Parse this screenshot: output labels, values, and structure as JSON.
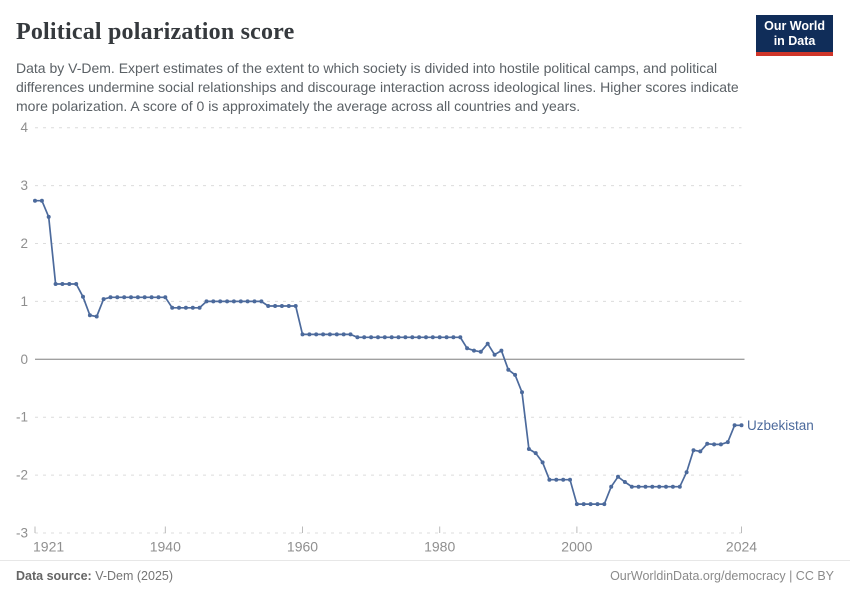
{
  "header": {
    "title": "Political polarization score",
    "subtitle": "Data by V-Dem. Expert estimates of the extent to which society is divided into hostile political camps, and political differences undermine social relationships and discourage interaction across ideological lines. Higher scores indicate more polarization. A score of 0 is approximately the average across all countries and years."
  },
  "logo": {
    "line1": "Our World",
    "line2": "in Data",
    "bg_color": "#102d59",
    "bar_color": "#cf3529"
  },
  "chart_data": {
    "type": "line",
    "title": "Political polarization score",
    "xlabel": "",
    "ylabel": "",
    "x_domain": [
      1921,
      2024
    ],
    "y_domain": [
      -3,
      4
    ],
    "y_ticks": [
      4,
      3,
      2,
      1,
      0,
      -1,
      -2,
      -3
    ],
    "x_ticks": [
      1921,
      1940,
      1960,
      1980,
      2000,
      2024
    ],
    "grid": "dashed horizontal, solid zero line",
    "legend_position": "end-of-line label",
    "series": [
      {
        "name": "Uzbekistan",
        "color": "#4c6a9c",
        "start_year": 1921,
        "end_year": 2024,
        "values": [
          2.74,
          2.74,
          2.46,
          1.3,
          1.3,
          1.3,
          1.3,
          1.08,
          0.76,
          0.74,
          1.04,
          1.07,
          1.07,
          1.07,
          1.07,
          1.07,
          1.07,
          1.07,
          1.07,
          1.07,
          0.89,
          0.89,
          0.89,
          0.89,
          0.89,
          1.0,
          1.0,
          1.0,
          1.0,
          1.0,
          1.0,
          1.0,
          1.0,
          1.0,
          0.92,
          0.92,
          0.92,
          0.92,
          0.92,
          0.43,
          0.43,
          0.43,
          0.43,
          0.43,
          0.43,
          0.43,
          0.43,
          0.38,
          0.38,
          0.38,
          0.38,
          0.38,
          0.38,
          0.38,
          0.38,
          0.38,
          0.38,
          0.38,
          0.38,
          0.38,
          0.38,
          0.38,
          0.38,
          0.19,
          0.15,
          0.13,
          0.27,
          0.08,
          0.15,
          -0.18,
          -0.27,
          -0.57,
          -1.55,
          -1.62,
          -1.78,
          -2.08,
          -2.08,
          -2.08,
          -2.08,
          -2.5,
          -2.5,
          -2.5,
          -2.5,
          -2.5,
          -2.2,
          -2.03,
          -2.12,
          -2.2,
          -2.2,
          -2.2,
          -2.2,
          -2.2,
          -2.2,
          -2.2,
          -2.2,
          -1.95,
          -1.57,
          -1.59,
          -1.46,
          -1.47,
          -1.47,
          -1.43,
          -1.14,
          -1.14
        ]
      }
    ],
    "axis_colors": {
      "tick_label": "#8f8f8f",
      "gridline": "#dcdcdc",
      "zero_line": "#a0a0a0",
      "tick_mark": "#bbbbbb"
    }
  },
  "footer": {
    "data_source_label": "Data source:",
    "data_source_value": " V-Dem (2025)",
    "right_text": "OurWorldinData.org/democracy | CC BY"
  }
}
